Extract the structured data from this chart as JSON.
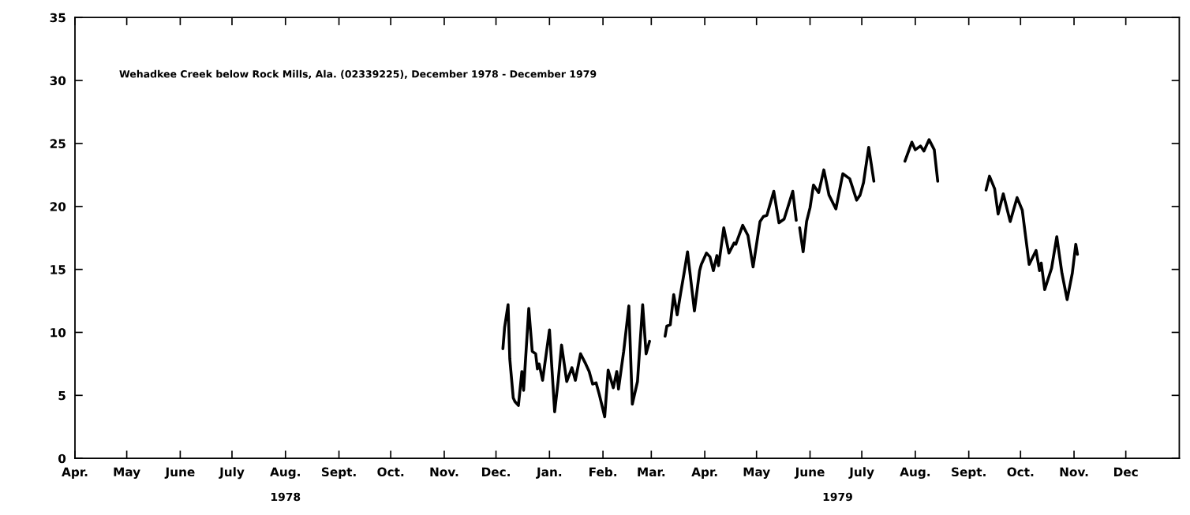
{
  "chart_data": {
    "type": "line",
    "title": "Wehadkee Creek below Rock Mills, Ala. (02339225), December 1978 - December 1979",
    "x": [
      "1978-12-05",
      "1978-12-06",
      "1978-12-08",
      "1978-12-09",
      "1978-12-11",
      "1978-12-12",
      "1978-12-14",
      "1978-12-16",
      "1978-12-17",
      "1978-12-20",
      "1978-12-22",
      "1978-12-24",
      "1978-12-25",
      "1978-12-26",
      "1978-12-28",
      "1979-01-01",
      "1979-01-04",
      "1979-01-06",
      "1979-01-08",
      "1979-01-11",
      "1979-01-14",
      "1979-01-16",
      "1979-01-19",
      "1979-01-22",
      "1979-01-24",
      "1979-01-26",
      "1979-01-28",
      "1979-01-30",
      "1979-02-02",
      "1979-02-04",
      "1979-02-07",
      "1979-02-09",
      "1979-02-10",
      "1979-02-13",
      "1979-02-16",
      "1979-02-18",
      "1979-02-21",
      "1979-02-24",
      "1979-02-26",
      "1979-02-28",
      "1979-03-04",
      "1979-03-09",
      "1979-03-10",
      "1979-03-12",
      "1979-03-14",
      "1979-03-16",
      "1979-03-18",
      "1979-03-20",
      "1979-03-22",
      "1979-03-26",
      "1979-03-29",
      "1979-03-30",
      "1979-04-02",
      "1979-04-04",
      "1979-04-06",
      "1979-04-08",
      "1979-04-09",
      "1979-04-12",
      "1979-04-15",
      "1979-04-18",
      "1979-04-19",
      "1979-04-23",
      "1979-04-26",
      "1979-04-29",
      "1979-05-03",
      "1979-05-05",
      "1979-05-07",
      "1979-05-11",
      "1979-05-14",
      "1979-05-17",
      "1979-05-22",
      "1979-05-24",
      "1979-05-25",
      "1979-05-26",
      "1979-05-28",
      "1979-05-30",
      "1979-06-01",
      "1979-06-03",
      "1979-06-06",
      "1979-06-09",
      "1979-06-12",
      "1979-06-16",
      "1979-06-20",
      "1979-06-24",
      "1979-06-28",
      "1979-06-30",
      "1979-07-02",
      "1979-07-05",
      "1979-07-08",
      "1979-07-17",
      "1979-07-26",
      "1979-07-30",
      "1979-08-01",
      "1979-08-04",
      "1979-08-06",
      "1979-08-09",
      "1979-08-12",
      "1979-08-14",
      "1979-08-30",
      "1979-09-11",
      "1979-09-13",
      "1979-09-16",
      "1979-09-18",
      "1979-09-21",
      "1979-09-25",
      "1979-09-29",
      "1979-10-02",
      "1979-10-06",
      "1979-10-10",
      "1979-10-12",
      "1979-10-13",
      "1979-10-15",
      "1979-10-19",
      "1979-10-22",
      "1979-10-25",
      "1979-10-28",
      "1979-10-31",
      "1979-11-02",
      "1979-11-03"
    ],
    "series": [
      {
        "color": "#000000",
        "values": [
          8.7,
          10.4,
          12.2,
          7.9,
          4.8,
          4.5,
          4.2,
          6.9,
          5.4,
          11.9,
          8.5,
          8.3,
          7.1,
          7.5,
          6.2,
          10.2,
          3.7,
          6.1,
          9.0,
          6.1,
          7.2,
          6.2,
          8.3,
          7.5,
          6.9,
          5.9,
          6.0,
          5.0,
          3.3,
          7.0,
          5.6,
          6.9,
          5.5,
          8.5,
          12.1,
          4.3,
          6.1,
          12.2,
          8.3,
          9.3,
          null,
          9.7,
          10.5,
          10.6,
          13.0,
          11.4,
          13.1,
          14.7,
          16.4,
          11.7,
          14.9,
          15.4,
          16.3,
          16.0,
          14.9,
          16.1,
          15.3,
          18.3,
          16.3,
          17.1,
          17.0,
          18.5,
          17.7,
          15.2,
          18.8,
          19.2,
          19.3,
          21.2,
          18.7,
          19.0,
          21.2,
          18.9,
          null,
          18.3,
          16.4,
          18.8,
          19.9,
          21.7,
          21.1,
          22.9,
          20.9,
          19.8,
          22.6,
          22.2,
          20.5,
          20.9,
          21.9,
          24.7,
          22.0,
          null,
          23.6,
          25.1,
          24.5,
          24.8,
          24.4,
          25.3,
          24.5,
          22.0,
          null,
          21.3,
          22.4,
          21.4,
          19.4,
          21.0,
          18.8,
          20.7,
          19.7,
          15.4,
          16.5,
          14.9,
          15.5,
          13.4,
          15.1,
          17.6,
          14.7,
          12.6,
          14.7,
          17.0,
          16.2
        ]
      }
    ],
    "xlim": [
      "1978-04-01",
      "1980-01-01"
    ],
    "xticks": [
      {
        "value": "1978-04-01",
        "label": "Apr."
      },
      {
        "value": "1978-05-01",
        "label": "May"
      },
      {
        "value": "1978-06-01",
        "label": "June"
      },
      {
        "value": "1978-07-01",
        "label": "July"
      },
      {
        "value": "1978-08-01",
        "label": "Aug."
      },
      {
        "value": "1978-09-01",
        "label": "Sept."
      },
      {
        "value": "1978-10-01",
        "label": "Oct."
      },
      {
        "value": "1978-11-01",
        "label": "Nov."
      },
      {
        "value": "1978-12-01",
        "label": "Dec."
      },
      {
        "value": "1979-01-01",
        "label": "Jan."
      },
      {
        "value": "1979-02-01",
        "label": "Feb."
      },
      {
        "value": "1979-03-01",
        "label": "Mar."
      },
      {
        "value": "1979-04-01",
        "label": "Apr."
      },
      {
        "value": "1979-05-01",
        "label": "May"
      },
      {
        "value": "1979-06-01",
        "label": "June"
      },
      {
        "value": "1979-07-01",
        "label": "July"
      },
      {
        "value": "1979-08-01",
        "label": "Aug."
      },
      {
        "value": "1979-09-01",
        "label": "Sept."
      },
      {
        "value": "1979-10-01",
        "label": "Oct."
      },
      {
        "value": "1979-11-01",
        "label": "Nov."
      },
      {
        "value": "1979-12-01",
        "label": "Dec"
      }
    ],
    "ylim": [
      0,
      35
    ],
    "yticks": [
      0,
      5,
      10,
      15,
      20,
      25,
      30,
      35
    ],
    "annotations": [
      "1978",
      "1979"
    ],
    "grid": false,
    "line_style": "solid",
    "marker": "none"
  }
}
